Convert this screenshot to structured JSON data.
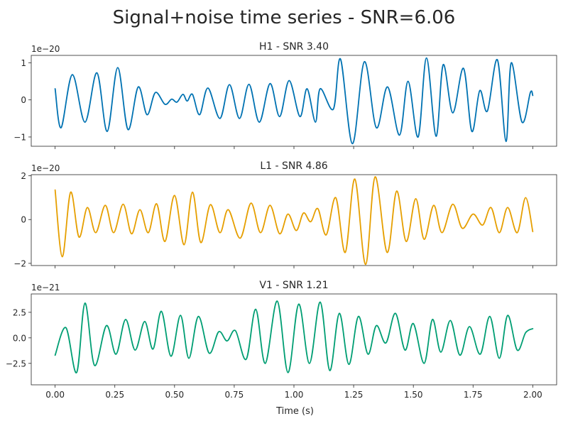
{
  "figure": {
    "title": "Signal+noise time series - SNR=6.06",
    "xlabel": "Time (s)"
  },
  "chart_data": [
    {
      "type": "line",
      "title": "H1 - SNR 3.40",
      "color": "#0072b2",
      "offset_label": "1e−20",
      "xlim": [
        -0.1,
        2.1
      ],
      "ylim": [
        -1.25,
        1.2
      ],
      "x_ticks": [
        0.0,
        0.25,
        0.5,
        0.75,
        1.0,
        1.25,
        1.5,
        1.75,
        2.0
      ],
      "x_tick_labels": [
        "0.00",
        "0.25",
        "0.50",
        "0.75",
        "1.00",
        "1.25",
        "1.50",
        "1.75",
        "2.00"
      ],
      "y_ticks": [
        -1,
        0,
        1
      ],
      "y_tick_labels": [
        "−1",
        "0",
        "1"
      ],
      "show_x_tick_labels": false,
      "series": [
        {
          "x": [
            0.0,
            0.025,
            0.072,
            0.125,
            0.175,
            0.218,
            0.262,
            0.305,
            0.348,
            0.385,
            0.42,
            0.46,
            0.488,
            0.51,
            0.535,
            0.553,
            0.575,
            0.605,
            0.64,
            0.69,
            0.73,
            0.772,
            0.812,
            0.855,
            0.9,
            0.94,
            0.98,
            1.025,
            1.055,
            1.09,
            1.11,
            1.165,
            1.195,
            1.245,
            1.295,
            1.345,
            1.392,
            1.442,
            1.478,
            1.52,
            1.555,
            1.595,
            1.625,
            1.665,
            1.71,
            1.745,
            1.778,
            1.81,
            1.852,
            1.888,
            1.91,
            1.955,
            1.99,
            2.0
          ],
          "y": [
            0.3,
            -0.75,
            0.68,
            -0.6,
            0.73,
            -0.85,
            0.87,
            -0.8,
            0.35,
            -0.4,
            0.2,
            -0.12,
            0.02,
            -0.06,
            0.15,
            -0.03,
            0.15,
            -0.4,
            0.32,
            -0.5,
            0.41,
            -0.5,
            0.42,
            -0.6,
            0.44,
            -0.45,
            0.52,
            -0.45,
            0.3,
            -0.6,
            0.3,
            -0.25,
            1.1,
            -1.18,
            1.03,
            -0.75,
            0.35,
            -0.95,
            0.5,
            -1.0,
            1.13,
            -0.98,
            0.95,
            -0.35,
            0.85,
            -0.85,
            0.25,
            -0.3,
            1.08,
            -1.12,
            1.0,
            -0.6,
            0.2,
            0.12
          ]
        }
      ]
    },
    {
      "type": "line",
      "title": "L1 - SNR 4.86",
      "color": "#e69f00",
      "offset_label": "1e−20",
      "xlim": [
        -0.1,
        2.1
      ],
      "ylim": [
        -2.1,
        2.05
      ],
      "x_ticks": [
        0.0,
        0.25,
        0.5,
        0.75,
        1.0,
        1.25,
        1.5,
        1.75,
        2.0
      ],
      "x_tick_labels": [
        "0.00",
        "0.25",
        "0.50",
        "0.75",
        "1.00",
        "1.25",
        "1.50",
        "1.75",
        "2.00"
      ],
      "y_ticks": [
        -2,
        0,
        2
      ],
      "y_tick_labels": [
        "−2",
        "0",
        "2"
      ],
      "show_x_tick_labels": false,
      "series": [
        {
          "x": [
            0.0,
            0.03,
            0.065,
            0.1,
            0.135,
            0.17,
            0.21,
            0.245,
            0.285,
            0.32,
            0.355,
            0.39,
            0.425,
            0.46,
            0.5,
            0.54,
            0.575,
            0.61,
            0.65,
            0.69,
            0.725,
            0.775,
            0.82,
            0.86,
            0.9,
            0.94,
            0.975,
            1.01,
            1.04,
            1.07,
            1.1,
            1.135,
            1.175,
            1.215,
            1.255,
            1.3,
            1.34,
            1.39,
            1.43,
            1.47,
            1.51,
            1.545,
            1.585,
            1.62,
            1.665,
            1.705,
            1.75,
            1.79,
            1.825,
            1.86,
            1.895,
            1.935,
            1.97,
            2.0
          ],
          "y": [
            1.35,
            -1.7,
            1.25,
            -0.8,
            0.55,
            -0.6,
            0.65,
            -0.6,
            0.7,
            -0.65,
            0.45,
            -0.6,
            0.72,
            -1.0,
            1.1,
            -1.15,
            1.25,
            -1.05,
            0.68,
            -0.6,
            0.45,
            -0.85,
            0.75,
            -0.6,
            0.65,
            -0.65,
            0.25,
            -0.5,
            0.3,
            -0.1,
            0.5,
            -0.7,
            1.0,
            -1.5,
            1.85,
            -2.05,
            1.95,
            -1.5,
            1.3,
            -1.0,
            0.95,
            -0.9,
            0.65,
            -0.6,
            0.7,
            -0.4,
            0.25,
            -0.25,
            0.55,
            -0.6,
            0.55,
            -0.6,
            1.0,
            -0.55
          ]
        }
      ]
    },
    {
      "type": "line",
      "title": "V1 - SNR 1.21",
      "color": "#009e73",
      "offset_label": "1e−21",
      "xlim": [
        -0.1,
        2.1
      ],
      "ylim": [
        -4.6,
        4.3
      ],
      "x_ticks": [
        0.0,
        0.25,
        0.5,
        0.75,
        1.0,
        1.25,
        1.5,
        1.75,
        2.0
      ],
      "x_tick_labels": [
        "0.00",
        "0.25",
        "0.50",
        "0.75",
        "1.00",
        "1.25",
        "1.50",
        "1.75",
        "2.00"
      ],
      "y_ticks": [
        -2.5,
        0.0,
        2.5
      ],
      "y_tick_labels": [
        "−2.5",
        "0.0",
        "2.5"
      ],
      "show_x_tick_labels": true,
      "series": [
        {
          "x": [
            0.0,
            0.045,
            0.09,
            0.125,
            0.165,
            0.215,
            0.255,
            0.295,
            0.335,
            0.375,
            0.41,
            0.445,
            0.485,
            0.525,
            0.56,
            0.6,
            0.645,
            0.685,
            0.72,
            0.755,
            0.8,
            0.84,
            0.88,
            0.93,
            0.975,
            1.02,
            1.065,
            1.11,
            1.15,
            1.19,
            1.23,
            1.27,
            1.31,
            1.345,
            1.385,
            1.425,
            1.465,
            1.5,
            1.545,
            1.58,
            1.615,
            1.655,
            1.695,
            1.735,
            1.78,
            1.82,
            1.86,
            1.895,
            1.935,
            1.97,
            2.0
          ],
          "y": [
            -1.7,
            1.0,
            -3.4,
            3.4,
            -2.7,
            1.2,
            -1.6,
            1.8,
            -1.2,
            1.6,
            -1.1,
            2.6,
            -1.8,
            2.2,
            -2.0,
            2.1,
            -1.5,
            0.6,
            -0.3,
            0.7,
            -2.1,
            2.8,
            -2.5,
            3.6,
            -3.4,
            3.3,
            -2.5,
            3.5,
            -3.2,
            2.4,
            -2.6,
            2.1,
            -1.6,
            1.2,
            -0.5,
            2.4,
            -1.2,
            1.4,
            -2.5,
            1.8,
            -1.4,
            1.7,
            -1.7,
            1.1,
            -1.6,
            2.1,
            -2.0,
            2.2,
            -1.2,
            0.5,
            0.9
          ]
        }
      ]
    }
  ]
}
